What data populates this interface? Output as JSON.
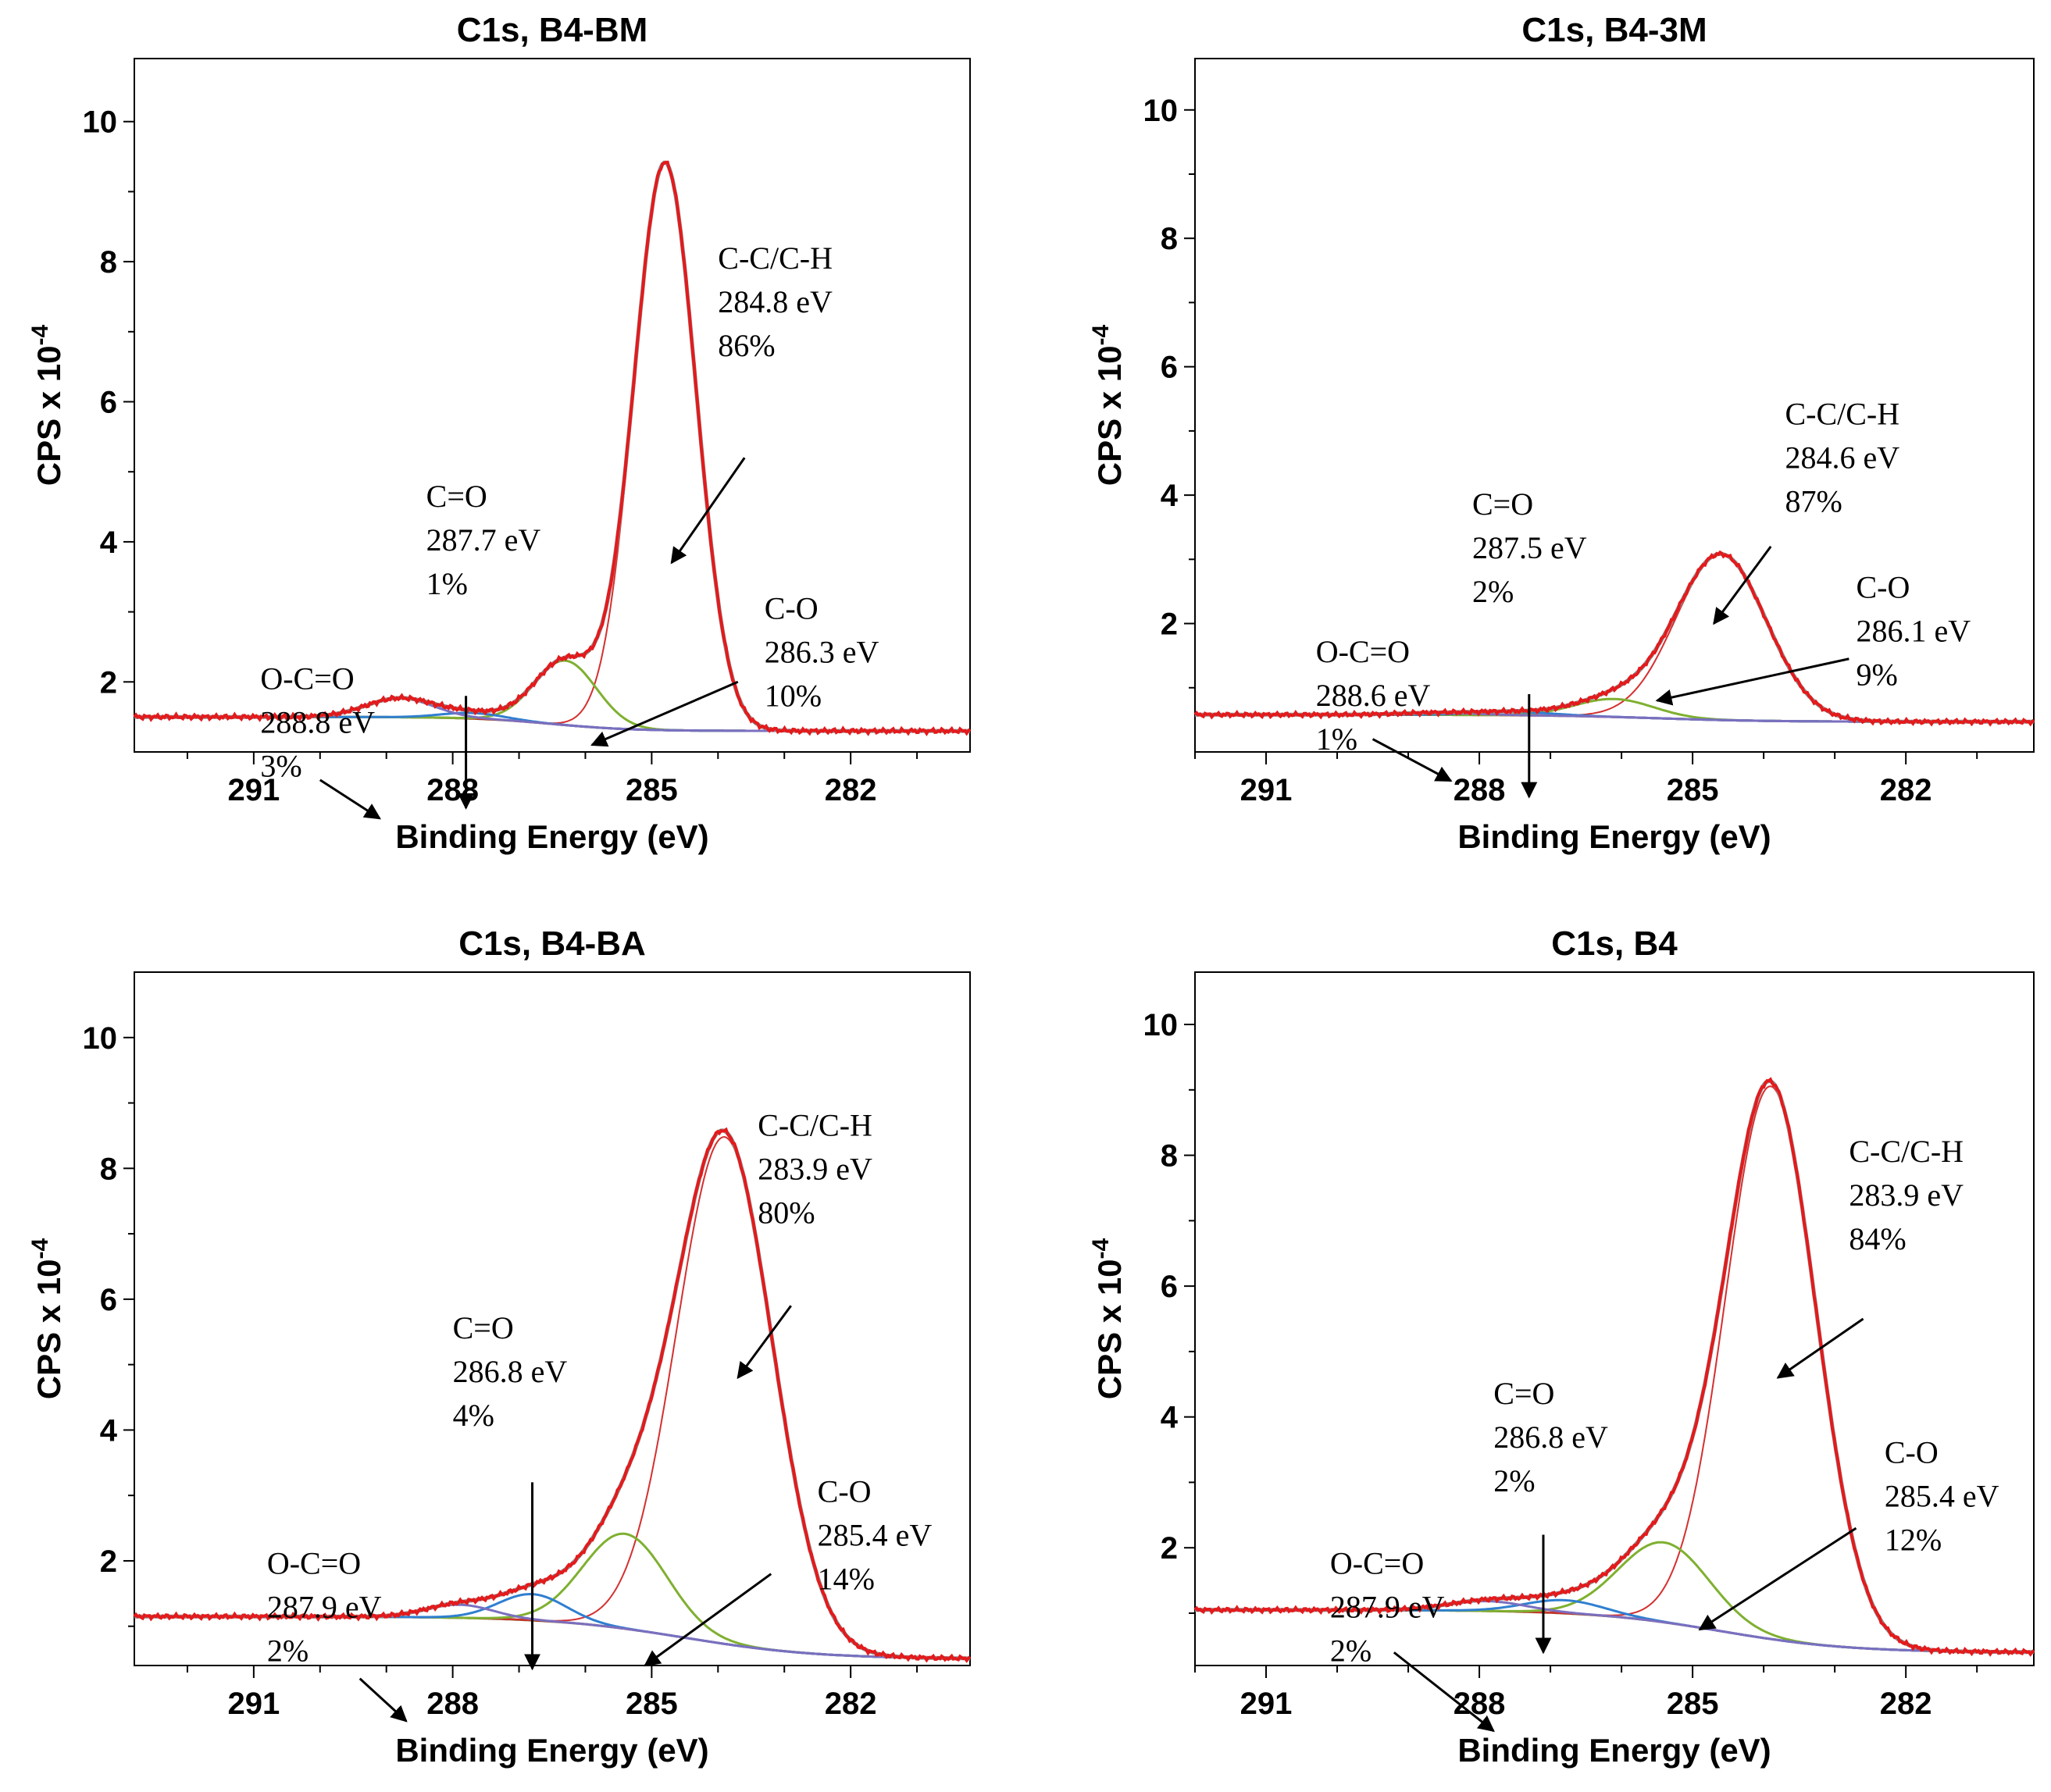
{
  "colors": {
    "envelope": "#e41a1c",
    "envelope_gray": "#8a8a8a",
    "background": "#8b4513",
    "cc": "#d43030",
    "co": "#7fb030",
    "c_eq_o": "#2f7fd0",
    "ococ": "#7a6fc0"
  },
  "chart_data": [
    {
      "type": "line",
      "title": "C1s, B4-BM",
      "xlabel": "Binding Energy (eV)",
      "ylabel": "CPS x 10",
      "ylabel_exp": "-4",
      "xlim": [
        292.8,
        280.2
      ],
      "ylim": [
        1.0,
        10.9
      ],
      "xticks_major": [
        "291",
        "288",
        "285",
        "282"
      ],
      "yticks": [
        "2",
        "4",
        "6",
        "8",
        "10"
      ],
      "background": {
        "left": 1.5,
        "right": 1.3,
        "step_center": 286.5,
        "step_width": 0.6
      },
      "peaks": [
        {
          "name": "C-C/C-H",
          "center": 284.8,
          "height": 8.1,
          "fwhm": 1.1,
          "color": "cc"
        },
        {
          "name": "C-O",
          "center": 286.3,
          "height": 0.92,
          "fwhm": 1.1,
          "color": "co"
        },
        {
          "name": "C=O",
          "center": 287.7,
          "height": 0.08,
          "fwhm": 1.1,
          "color": "c_eq_o"
        },
        {
          "name": "O-C=O",
          "center": 288.8,
          "height": 0.27,
          "fwhm": 1.2,
          "color": "ococ"
        }
      ],
      "annotations": [
        {
          "lines": [
            "C-C/C-H",
            "284.8 eV",
            "86%"
          ],
          "text_at": [
            284.0,
            7.9
          ],
          "arrow_from": [
            283.6,
            5.2
          ],
          "arrow_to": [
            284.7,
            3.7
          ]
        },
        {
          "lines": [
            "C-O",
            "286.3 eV",
            "10%"
          ],
          "text_at": [
            283.3,
            2.9
          ],
          "arrow_from": [
            283.7,
            2.0
          ],
          "arrow_to": [
            285.9,
            1.1
          ]
        },
        {
          "lines": [
            "C=O",
            "287.7 eV",
            "1%"
          ],
          "text_at": [
            288.4,
            4.5
          ],
          "arrow_from": [
            287.8,
            1.8
          ],
          "arrow_to": [
            287.8,
            0.2
          ]
        },
        {
          "lines": [
            "O-C=O",
            "288.8 eV",
            "3%"
          ],
          "text_at": [
            290.9,
            1.9
          ],
          "arrow_from": [
            290.0,
            0.6
          ],
          "arrow_to": [
            289.1,
            0.05
          ]
        }
      ]
    },
    {
      "type": "line",
      "title": "C1s, B4-3M",
      "xlabel": "Binding Energy (eV)",
      "ylabel": "CPS x 10",
      "ylabel_exp": "-4",
      "xlim": [
        292.0,
        280.2
      ],
      "ylim": [
        0.0,
        10.8
      ],
      "xticks_major": [
        "291",
        "288",
        "285",
        "282"
      ],
      "yticks": [
        "2",
        "4",
        "6",
        "8",
        "10"
      ],
      "background": {
        "left": 0.58,
        "right": 0.47,
        "step_center": 285.5,
        "step_width": 0.8
      },
      "peaks": [
        {
          "name": "C-C/C-H",
          "center": 284.6,
          "height": 2.58,
          "fwhm": 1.5,
          "color": "cc"
        },
        {
          "name": "C-O",
          "center": 286.1,
          "height": 0.28,
          "fwhm": 1.3,
          "color": "co"
        },
        {
          "name": "C=O",
          "center": 287.5,
          "height": 0.05,
          "fwhm": 1.3,
          "color": "c_eq_o"
        },
        {
          "name": "O-C=O",
          "center": 288.6,
          "height": 0.03,
          "fwhm": 1.3,
          "color": "ococ"
        }
      ],
      "annotations": [
        {
          "lines": [
            "C-C/C-H",
            "284.6 eV",
            "87%"
          ],
          "text_at": [
            283.7,
            5.1
          ],
          "arrow_from": [
            283.9,
            3.2
          ],
          "arrow_to": [
            284.7,
            2.0
          ]
        },
        {
          "lines": [
            "C-O",
            "286.1 eV",
            "9%"
          ],
          "text_at": [
            282.7,
            2.4
          ],
          "arrow_from": [
            282.8,
            1.45
          ],
          "arrow_to": [
            285.5,
            0.8
          ]
        },
        {
          "lines": [
            "C=O",
            "287.5 eV",
            "2%"
          ],
          "text_at": [
            288.1,
            3.7
          ],
          "arrow_from": [
            287.3,
            0.9
          ],
          "arrow_to": [
            287.3,
            -0.7
          ]
        },
        {
          "lines": [
            "O-C=O",
            "288.6 eV",
            "1%"
          ],
          "text_at": [
            290.3,
            1.4
          ],
          "arrow_from": [
            289.5,
            0.2
          ],
          "arrow_to": [
            288.4,
            -0.45
          ]
        }
      ]
    },
    {
      "type": "line",
      "title": "C1s, B4-BA",
      "xlabel": "Binding Energy (eV)",
      "ylabel": "CPS x 10",
      "ylabel_exp": "-4",
      "xlim": [
        292.8,
        280.2
      ],
      "ylim": [
        0.4,
        11.0
      ],
      "xticks_major": [
        "291",
        "288",
        "285",
        "282"
      ],
      "yticks": [
        "2",
        "4",
        "6",
        "8",
        "10"
      ],
      "background": {
        "left": 1.15,
        "right": 0.5,
        "step_center": 284.5,
        "step_width": 1.0
      },
      "peaks": [
        {
          "name": "C-C/C-H",
          "center": 283.9,
          "height": 7.75,
          "fwhm": 1.7,
          "color": "cc"
        },
        {
          "name": "C-O",
          "center": 285.4,
          "height": 1.45,
          "fwhm": 1.5,
          "color": "co"
        },
        {
          "name": "C=O",
          "center": 286.8,
          "height": 0.4,
          "fwhm": 1.2,
          "color": "c_eq_o"
        },
        {
          "name": "O-C=O",
          "center": 287.9,
          "height": 0.2,
          "fwhm": 1.2,
          "color": "ococ"
        }
      ],
      "annotations": [
        {
          "lines": [
            "C-C/C-H",
            "283.9 eV",
            "80%"
          ],
          "text_at": [
            283.4,
            8.5
          ],
          "arrow_from": [
            282.9,
            5.9
          ],
          "arrow_to": [
            283.7,
            4.8
          ]
        },
        {
          "lines": [
            "C-O",
            "285.4 eV",
            "14%"
          ],
          "text_at": [
            282.5,
            2.9
          ],
          "arrow_from": [
            283.2,
            1.8
          ],
          "arrow_to": [
            285.1,
            0.4
          ]
        },
        {
          "lines": [
            "C=O",
            "286.8 eV",
            "4%"
          ],
          "text_at": [
            288.0,
            5.4
          ],
          "arrow_from": [
            286.8,
            3.2
          ],
          "arrow_to": [
            286.8,
            0.35
          ]
        },
        {
          "lines": [
            "O-C=O",
            "287.9 eV",
            "2%"
          ],
          "text_at": [
            290.8,
            1.8
          ],
          "arrow_from": [
            289.4,
            0.2
          ],
          "arrow_to": [
            288.7,
            -0.45
          ]
        }
      ]
    },
    {
      "type": "line",
      "title": "C1s, B4",
      "xlabel": "Binding Energy (eV)",
      "ylabel": "CPS x 10",
      "ylabel_exp": "-4",
      "xlim": [
        292.0,
        280.2
      ],
      "ylim": [
        0.2,
        10.8
      ],
      "xticks_major": [
        "291",
        "288",
        "285",
        "282"
      ],
      "yticks": [
        "2",
        "4",
        "6",
        "8",
        "10"
      ],
      "background": {
        "left": 1.05,
        "right": 0.4,
        "step_center": 284.6,
        "step_width": 0.9
      },
      "peaks": [
        {
          "name": "C-C/C-H",
          "center": 283.9,
          "height": 8.45,
          "fwhm": 1.5,
          "color": "cc"
        },
        {
          "name": "C-O",
          "center": 285.4,
          "height": 1.22,
          "fwhm": 1.5,
          "color": "co"
        },
        {
          "name": "C=O",
          "center": 286.8,
          "height": 0.2,
          "fwhm": 1.3,
          "color": "c_eq_o"
        },
        {
          "name": "O-C=O",
          "center": 287.9,
          "height": 0.15,
          "fwhm": 1.3,
          "color": "ococ"
        }
      ],
      "annotations": [
        {
          "lines": [
            "C-C/C-H",
            "283.9 eV",
            "84%"
          ],
          "text_at": [
            282.8,
            7.9
          ],
          "arrow_from": [
            282.6,
            5.5
          ],
          "arrow_to": [
            283.8,
            4.6
          ]
        },
        {
          "lines": [
            "C-O",
            "285.4 eV",
            "12%"
          ],
          "text_at": [
            282.3,
            3.3
          ],
          "arrow_from": [
            282.7,
            2.3
          ],
          "arrow_to": [
            284.9,
            0.75
          ]
        },
        {
          "lines": [
            "C=O",
            "286.8 eV",
            "2%"
          ],
          "text_at": [
            287.8,
            4.2
          ],
          "arrow_from": [
            287.1,
            2.2
          ],
          "arrow_to": [
            287.1,
            0.4
          ]
        },
        {
          "lines": [
            "O-C=O",
            "287.9 eV",
            "2%"
          ],
          "text_at": [
            290.1,
            1.6
          ],
          "arrow_from": [
            289.2,
            0.4
          ],
          "arrow_to": [
            287.8,
            -0.8
          ]
        }
      ]
    }
  ]
}
